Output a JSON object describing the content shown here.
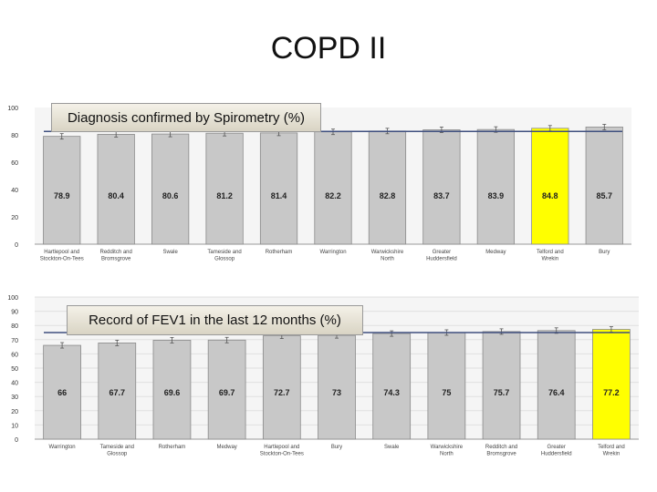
{
  "slide": {
    "title": "COPD II"
  },
  "chart_data": [
    {
      "type": "bar",
      "title": "Diagnosis confirmed by Spirometry (%)",
      "categories": [
        "Hartlepool and Stockton-On-Tees",
        "Redditch and Bromsgrove",
        "Swale",
        "Tameside and Glossop",
        "Rotherham",
        "Warrington",
        "Warwickshire North",
        "Greater Huddersfield",
        "Medway",
        "Telford and Wrekin",
        "Bury"
      ],
      "values": [
        78.9,
        80.4,
        80.6,
        81.2,
        81.4,
        82.2,
        82.8,
        83.7,
        83.9,
        84.8,
        85.7
      ],
      "highlight_index": 9,
      "reference_line": 82.5,
      "ylim": [
        0,
        100
      ],
      "yticks": [
        0,
        20,
        40,
        60,
        80,
        100
      ],
      "grid": false,
      "colors": {
        "bar": "#c8c8c8",
        "highlight": "#ffff00",
        "reference": "#3f4f7f"
      }
    },
    {
      "type": "bar",
      "title": "Record of FEV1 in the last 12 months (%)",
      "categories": [
        "Warrington",
        "Tameside and Glossop",
        "Rotherham",
        "Medway",
        "Hartlepool and Stockton-On-Tees",
        "Bury",
        "Swale",
        "Warwickshire North",
        "Redditch and Bromsgrove",
        "Greater Huddersfield",
        "Telford and Wrekin"
      ],
      "values": [
        66,
        67.7,
        69.6,
        69.7,
        72.7,
        73,
        74.3,
        75,
        75.7,
        76.4,
        77.2
      ],
      "highlight_index": 10,
      "reference_line": 75,
      "ylim": [
        0,
        100
      ],
      "yticks": [
        0,
        10,
        20,
        30,
        40,
        50,
        60,
        70,
        80,
        90,
        100
      ],
      "grid": true,
      "colors": {
        "bar": "#c8c8c8",
        "highlight": "#ffff00",
        "reference": "#3f4f7f"
      }
    }
  ]
}
